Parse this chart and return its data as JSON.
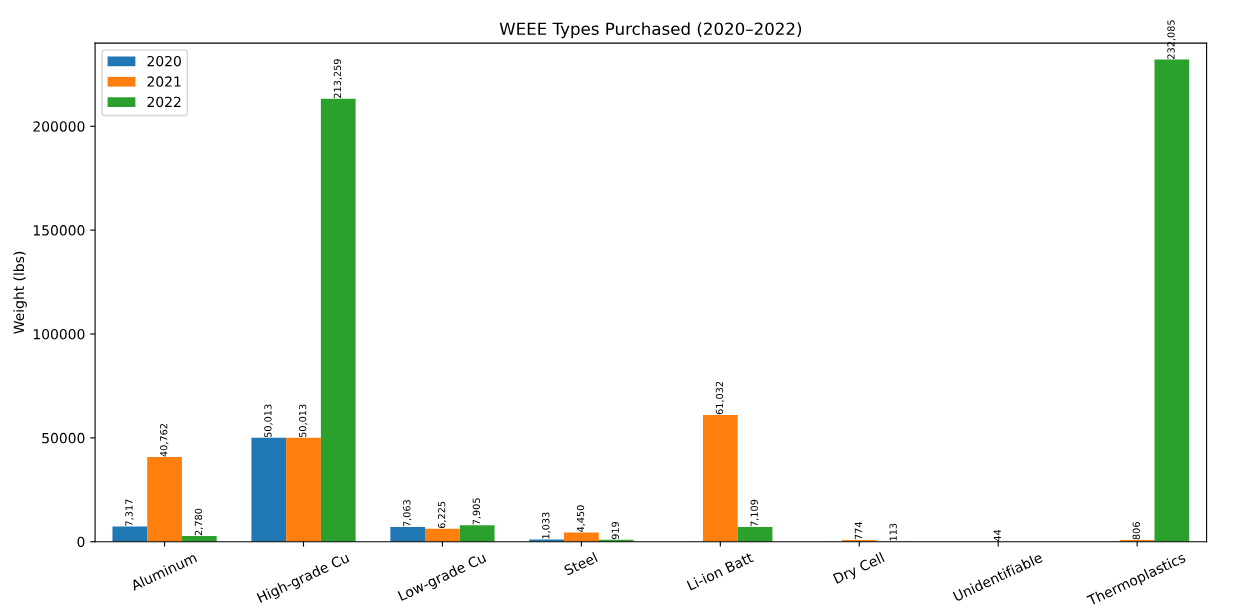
{
  "chart_data": {
    "type": "bar",
    "title": "WEEE Types Purchased (2020–2022)",
    "ylabel": "Weight (lbs)",
    "categories": [
      "Aluminum",
      "High-grade Cu",
      "Low-grade Cu",
      "Steel",
      "Li-ion Batt",
      "Dry Cell",
      "Unidentifiable",
      "Thermoplastics"
    ],
    "series": [
      {
        "name": "2020",
        "color": "#1f77b4",
        "values": [
          7317,
          50013,
          7063,
          1033,
          null,
          null,
          null,
          null
        ],
        "value_labels": [
          "7,317",
          "50,013",
          "7,063",
          "1,033",
          null,
          null,
          null,
          null
        ]
      },
      {
        "name": "2021",
        "color": "#ff7f0e",
        "values": [
          40762,
          50013,
          6225,
          4450,
          61032,
          774,
          44,
          806
        ],
        "value_labels": [
          "40,762",
          "50,013",
          "6,225",
          "4,450",
          "61,032",
          "774",
          "44",
          "806"
        ]
      },
      {
        "name": "2022",
        "color": "#2ca02c",
        "values": [
          2780,
          213259,
          7905,
          919,
          7109,
          113,
          null,
          232085
        ],
        "value_labels": [
          "2,780",
          "213,259",
          "7,905",
          "919",
          "7,109",
          "113",
          null,
          "232,085"
        ]
      }
    ],
    "ylim": [
      0,
      240000
    ],
    "yticks": [
      0,
      50000,
      100000,
      150000,
      200000
    ],
    "grid": false,
    "legend": "top left"
  }
}
